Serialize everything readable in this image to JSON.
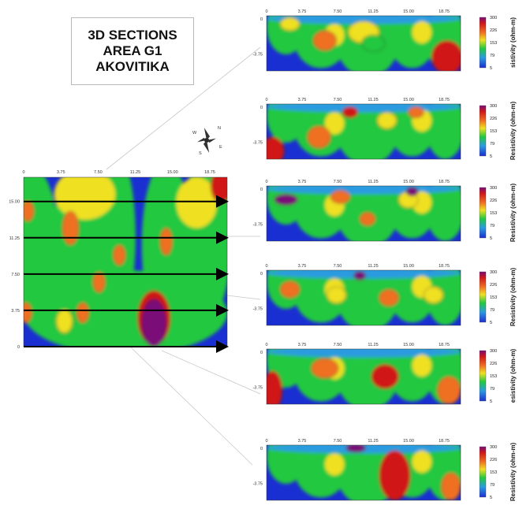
{
  "title": {
    "line1": "3D SECTIONS",
    "line2": "AREA G1",
    "line3": "AKOVITIKA"
  },
  "compass": {
    "icon": "compass-rose-icon",
    "labels": [
      "N",
      "W",
      "E",
      "S"
    ]
  },
  "colors": {
    "low": "#1a2fd1",
    "mid_low": "#2a9be0",
    "mid": "#22c840",
    "mid_high": "#f0e020",
    "high": "#f07020",
    "max": "#d01818",
    "peak": "#7a0a78"
  },
  "chart_data": [
    {
      "type": "heatmap",
      "name": "plan-view",
      "x_ticks": [
        "0",
        "3.75",
        "7.50",
        "11.25",
        "15.00",
        "18.75"
      ],
      "y_ticks": [
        "15.00",
        "11.25",
        "7.50",
        "3.75",
        "0"
      ],
      "xlim": [
        0,
        20.5
      ],
      "ylim": [
        0,
        17.5
      ],
      "profile_lines_y": [
        15.0,
        11.25,
        7.5,
        3.75,
        0
      ],
      "grid": false
    },
    {
      "type": "heatmap",
      "name": "section-1",
      "x_ticks": [
        "0",
        "3.75",
        "7.50",
        "11.25",
        "15.00",
        "18.75"
      ],
      "y_ticks": [
        "0",
        "-3.75"
      ],
      "xlim": [
        0,
        20.5
      ],
      "colorbar": {
        "ticks": [
          "300",
          "226",
          "153",
          "79",
          "5"
        ],
        "label": "sistivity (ohm-m)"
      }
    },
    {
      "type": "heatmap",
      "name": "section-2",
      "x_ticks": [
        "0",
        "3.75",
        "7.50",
        "11.25",
        "15.00",
        "18.75"
      ],
      "y_ticks": [
        "0",
        "-3.75"
      ],
      "xlim": [
        0,
        20.5
      ],
      "colorbar": {
        "ticks": [
          "300",
          "226",
          "153",
          "79",
          "5"
        ],
        "label": "Resistivity (ohm-m)"
      }
    },
    {
      "type": "heatmap",
      "name": "section-3",
      "x_ticks": [
        "0",
        "3.75",
        "7.50",
        "11.25",
        "15.00",
        "18.75"
      ],
      "y_ticks": [
        "0",
        "-3.75"
      ],
      "xlim": [
        0,
        20.5
      ],
      "colorbar": {
        "ticks": [
          "300",
          "226",
          "153",
          "79",
          "5"
        ],
        "label": "Resistivity (ohm-m)"
      }
    },
    {
      "type": "heatmap",
      "name": "section-4",
      "x_ticks": [
        "0",
        "3.75",
        "7.50",
        "11.25",
        "15.00",
        "18.75"
      ],
      "y_ticks": [
        "0",
        "-3.75"
      ],
      "xlim": [
        0,
        20.5
      ],
      "colorbar": {
        "ticks": [
          "300",
          "226",
          "153",
          "79",
          "5"
        ],
        "label": "Resistivity (ohm-m)"
      }
    },
    {
      "type": "heatmap",
      "name": "section-5",
      "x_ticks": [
        "0",
        "3.75",
        "7.50",
        "11.25",
        "15.00",
        "18.75"
      ],
      "y_ticks": [
        "0",
        "-3.75"
      ],
      "xlim": [
        0,
        20.5
      ],
      "colorbar": {
        "ticks": [
          "300",
          "226",
          "153",
          "79",
          "5"
        ],
        "label": "esistivity (ohm-m)"
      }
    },
    {
      "type": "heatmap",
      "name": "section-6",
      "x_ticks": [
        "0",
        "3.75",
        "7.50",
        "11.25",
        "15.00",
        "18.75"
      ],
      "y_ticks": [
        "0",
        "-3.75"
      ],
      "xlim": [
        0,
        20.5
      ],
      "colorbar": {
        "ticks": [
          "300",
          "226",
          "153",
          "79",
          "5"
        ],
        "label": "Resistivity (ohm-m)"
      }
    }
  ]
}
